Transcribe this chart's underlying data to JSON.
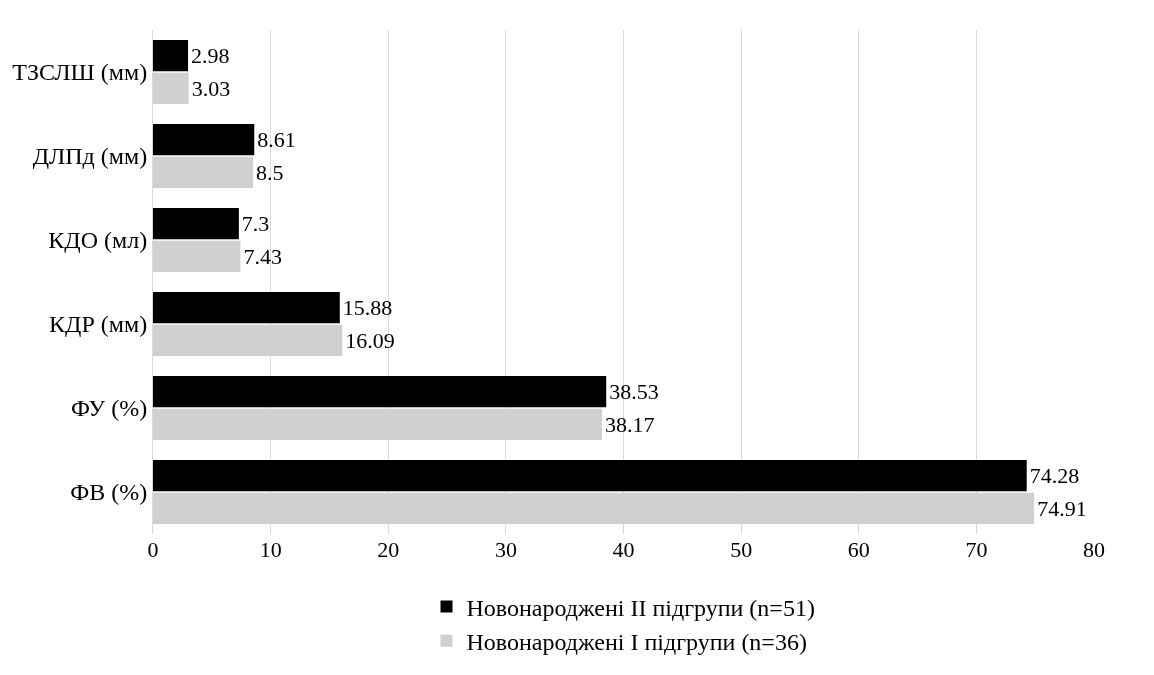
{
  "chart_data": {
    "type": "bar",
    "orientation": "horizontal",
    "categories": [
      "ТЗСЛШ (мм)",
      "ДЛПд (мм)",
      "КДО (мл)",
      "КДР (мм)",
      "ФУ (%)",
      "ФВ (%)"
    ],
    "series": [
      {
        "name": "Новонароджені ІІ підгрупи (n=51)",
        "color": "#000000",
        "values": [
          2.98,
          8.61,
          7.3,
          15.88,
          38.53,
          74.28
        ]
      },
      {
        "name": "Новонароджені І підгрупи (n=36)",
        "color": "#d0d0d0",
        "values": [
          3.03,
          8.5,
          7.43,
          16.09,
          38.17,
          74.91
        ]
      }
    ],
    "xlim": [
      0,
      80
    ],
    "xticks": [
      0,
      10,
      20,
      30,
      40,
      50,
      60,
      70,
      80
    ],
    "grid": "x",
    "legend": "bottom",
    "data_labels": true
  }
}
